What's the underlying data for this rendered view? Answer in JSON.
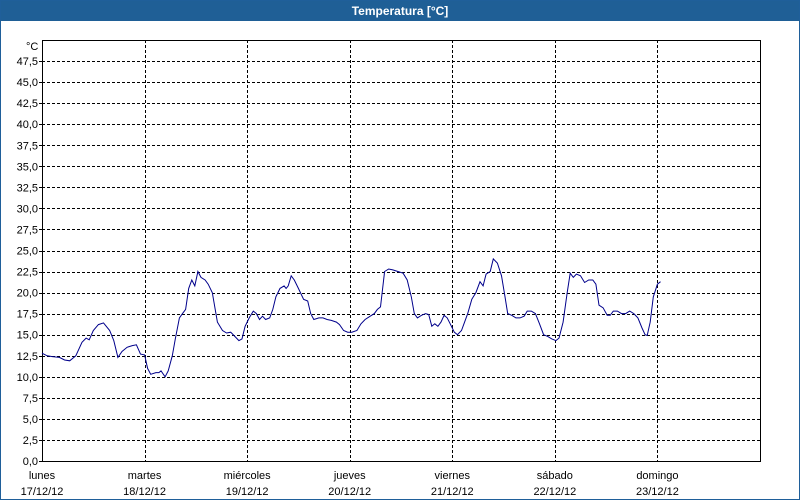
{
  "window": {
    "title": "Temperatura [°C]"
  },
  "chart_data": {
    "type": "line",
    "title": "Temperatura [°C]",
    "unit_label": "°C",
    "ylim": [
      0,
      50
    ],
    "ytick_labels": [
      "0,0",
      "2,5",
      "5,0",
      "7,5",
      "10,0",
      "12,5",
      "15,0",
      "17,5",
      "20,0",
      "22,5",
      "25,0",
      "27,5",
      "30,0",
      "32,5",
      "35,0",
      "37,5",
      "40,0",
      "42,5",
      "45,0",
      "47,5"
    ],
    "xlim_days": [
      0,
      7
    ],
    "day_labels": [
      {
        "day": "lunes",
        "date": "17/12/12"
      },
      {
        "day": "martes",
        "date": "18/12/12"
      },
      {
        "day": "miércoles",
        "date": "19/12/12"
      },
      {
        "day": "jueves",
        "date": "20/12/12"
      },
      {
        "day": "viernes",
        "date": "21/12/12"
      },
      {
        "day": "sábado",
        "date": "22/12/12"
      },
      {
        "day": "domingo",
        "date": "23/12/12"
      }
    ],
    "grid": true,
    "line_color": "#00008b",
    "series": [
      {
        "points": [
          [
            0.0,
            12.8
          ],
          [
            0.05,
            12.5
          ],
          [
            0.1,
            12.4
          ],
          [
            0.17,
            12.3
          ],
          [
            0.22,
            12.0
          ],
          [
            0.27,
            11.9
          ],
          [
            0.33,
            12.5
          ],
          [
            0.39,
            14.1
          ],
          [
            0.43,
            14.6
          ],
          [
            0.46,
            14.4
          ],
          [
            0.5,
            15.5
          ],
          [
            0.55,
            16.2
          ],
          [
            0.6,
            16.4
          ],
          [
            0.66,
            15.5
          ],
          [
            0.7,
            14.3
          ],
          [
            0.74,
            12.3
          ],
          [
            0.78,
            13.0
          ],
          [
            0.83,
            13.5
          ],
          [
            0.88,
            13.7
          ],
          [
            0.92,
            13.8
          ],
          [
            0.96,
            12.7
          ],
          [
            1.0,
            12.6
          ],
          [
            1.03,
            11.0
          ],
          [
            1.06,
            10.3
          ],
          [
            1.11,
            10.5
          ],
          [
            1.14,
            10.5
          ],
          [
            1.16,
            10.7
          ],
          [
            1.2,
            10.0
          ],
          [
            1.23,
            10.7
          ],
          [
            1.27,
            12.5
          ],
          [
            1.3,
            14.5
          ],
          [
            1.34,
            17.0
          ],
          [
            1.37,
            17.5
          ],
          [
            1.4,
            18.0
          ],
          [
            1.43,
            20.5
          ],
          [
            1.46,
            21.5
          ],
          [
            1.49,
            20.8
          ],
          [
            1.52,
            22.5
          ],
          [
            1.55,
            21.8
          ],
          [
            1.59,
            21.5
          ],
          [
            1.62,
            21.0
          ],
          [
            1.66,
            20.0
          ],
          [
            1.71,
            16.5
          ],
          [
            1.76,
            15.5
          ],
          [
            1.8,
            15.2
          ],
          [
            1.84,
            15.3
          ],
          [
            1.88,
            14.8
          ],
          [
            1.92,
            14.3
          ],
          [
            1.95,
            14.5
          ],
          [
            1.98,
            16.0
          ],
          [
            2.02,
            17.0
          ],
          [
            2.06,
            17.8
          ],
          [
            2.09,
            17.5
          ],
          [
            2.12,
            16.8
          ],
          [
            2.15,
            17.2
          ],
          [
            2.18,
            16.8
          ],
          [
            2.22,
            17.0
          ],
          [
            2.25,
            18.0
          ],
          [
            2.28,
            19.5
          ],
          [
            2.32,
            20.5
          ],
          [
            2.36,
            20.8
          ],
          [
            2.38,
            20.5
          ],
          [
            2.4,
            20.8
          ],
          [
            2.43,
            22.0
          ],
          [
            2.46,
            21.5
          ],
          [
            2.5,
            20.5
          ],
          [
            2.55,
            19.2
          ],
          [
            2.59,
            19.0
          ],
          [
            2.62,
            17.5
          ],
          [
            2.65,
            16.8
          ],
          [
            2.7,
            17.0
          ],
          [
            2.74,
            17.0
          ],
          [
            2.78,
            16.8
          ],
          [
            2.82,
            16.7
          ],
          [
            2.87,
            16.5
          ],
          [
            2.9,
            16.2
          ],
          [
            2.94,
            15.5
          ],
          [
            2.98,
            15.3
          ],
          [
            3.02,
            15.3
          ],
          [
            3.07,
            15.5
          ],
          [
            3.11,
            16.3
          ],
          [
            3.15,
            16.8
          ],
          [
            3.2,
            17.2
          ],
          [
            3.24,
            17.5
          ],
          [
            3.27,
            18.0
          ],
          [
            3.3,
            18.3
          ],
          [
            3.34,
            22.5
          ],
          [
            3.38,
            22.8
          ],
          [
            3.42,
            22.7
          ],
          [
            3.47,
            22.5
          ],
          [
            3.52,
            22.3
          ],
          [
            3.56,
            21.5
          ],
          [
            3.6,
            19.5
          ],
          [
            3.63,
            17.5
          ],
          [
            3.66,
            17.0
          ],
          [
            3.7,
            17.3
          ],
          [
            3.74,
            17.5
          ],
          [
            3.77,
            17.4
          ],
          [
            3.8,
            16.0
          ],
          [
            3.83,
            16.3
          ],
          [
            3.86,
            16.0
          ],
          [
            3.89,
            16.5
          ],
          [
            3.92,
            17.3
          ],
          [
            3.95,
            17.0
          ],
          [
            3.98,
            16.3
          ],
          [
            4.02,
            15.3
          ],
          [
            4.05,
            15.0
          ],
          [
            4.09,
            15.5
          ],
          [
            4.12,
            16.5
          ],
          [
            4.15,
            17.5
          ],
          [
            4.19,
            19.2
          ],
          [
            4.23,
            20.0
          ],
          [
            4.27,
            21.3
          ],
          [
            4.3,
            20.8
          ],
          [
            4.33,
            22.2
          ],
          [
            4.37,
            22.5
          ],
          [
            4.4,
            24.0
          ],
          [
            4.44,
            23.5
          ],
          [
            4.48,
            22.0
          ],
          [
            4.51,
            19.8
          ],
          [
            4.54,
            17.5
          ],
          [
            4.58,
            17.3
          ],
          [
            4.62,
            17.0
          ],
          [
            4.66,
            17.0
          ],
          [
            4.7,
            17.2
          ],
          [
            4.73,
            17.8
          ],
          [
            4.77,
            17.8
          ],
          [
            4.81,
            17.5
          ],
          [
            4.85,
            16.3
          ],
          [
            4.89,
            15.0
          ],
          [
            4.93,
            14.8
          ],
          [
            4.97,
            14.5
          ],
          [
            5.01,
            14.3
          ],
          [
            5.04,
            14.6
          ],
          [
            5.08,
            16.5
          ],
          [
            5.12,
            20.0
          ],
          [
            5.15,
            22.3
          ],
          [
            5.18,
            21.8
          ],
          [
            5.21,
            22.2
          ],
          [
            5.25,
            22.0
          ],
          [
            5.29,
            21.2
          ],
          [
            5.33,
            21.5
          ],
          [
            5.37,
            21.5
          ],
          [
            5.4,
            21.0
          ],
          [
            5.43,
            18.5
          ],
          [
            5.47,
            18.2
          ],
          [
            5.51,
            17.3
          ],
          [
            5.54,
            17.3
          ],
          [
            5.57,
            17.8
          ],
          [
            5.61,
            17.8
          ],
          [
            5.65,
            17.5
          ],
          [
            5.69,
            17.5
          ],
          [
            5.73,
            17.8
          ],
          [
            5.77,
            17.5
          ],
          [
            5.81,
            17.0
          ],
          [
            5.85,
            15.8
          ],
          [
            5.88,
            15.0
          ],
          [
            5.9,
            14.9
          ],
          [
            5.93,
            16.5
          ],
          [
            5.96,
            19.5
          ],
          [
            6.0,
            21.0
          ],
          [
            6.03,
            21.3
          ]
        ]
      }
    ]
  }
}
